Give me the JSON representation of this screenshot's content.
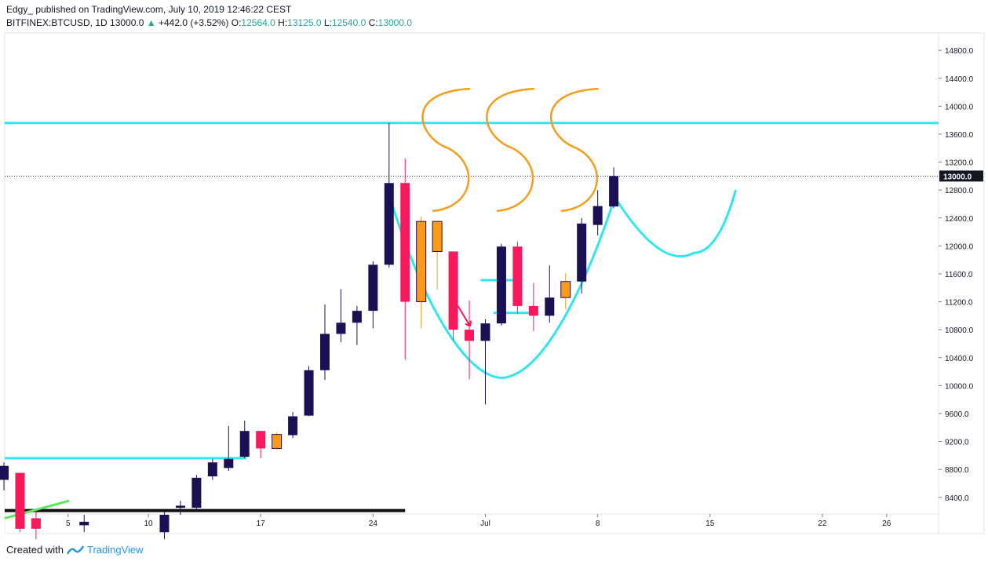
{
  "header": {
    "author": "Edgy_",
    "published": "published on TradingView.com, July 10, 2019 12:46:22 CEST",
    "symbol": "BITFINEX:BTCUSD, 1D",
    "last": "13000.0",
    "change": "+442.0 (+3.52%)",
    "o_label": "O:",
    "o_value": "12564.0",
    "h_label": "H:",
    "h_value": "13125.0",
    "l_label": "L:",
    "l_value": "12540.0",
    "c_label": "C:",
    "c_value": "13000.0"
  },
  "footer": {
    "created_with": "Created with",
    "brand": "TradingView"
  },
  "colors": {
    "up": "#1a1054",
    "down": "#f7195b",
    "neutral": "#ff9a18",
    "cyan": "#2ee6f0",
    "orange": "#f79d1c",
    "green": "#5ce65c",
    "black": "#111111",
    "priceTag": "#131722"
  },
  "chart_data": {
    "type": "candlestick",
    "symbol": "BITFINEX:BTCUSD",
    "interval": "1D",
    "ylim": [
      8150,
      15000
    ],
    "yticks": [
      8400,
      8800,
      9200,
      9600,
      10000,
      10400,
      10800,
      11200,
      11600,
      12000,
      12400,
      12800,
      13200,
      13600,
      14000,
      14400,
      14800
    ],
    "ytick_labels": [
      "8400.0",
      "8800.0",
      "9200.0",
      "9600.0",
      "10000.0",
      "10400.0",
      "10800.0",
      "11200.0",
      "11600.0",
      "12000.0",
      "12400.0",
      "12800.0",
      "13200.0",
      "13600.0",
      "14000.0",
      "14400.0",
      "14800.0"
    ],
    "xticks": [
      {
        "day": 5,
        "label": "5"
      },
      {
        "day": 10,
        "label": "10"
      },
      {
        "day": 17,
        "label": "17"
      },
      {
        "day": 24,
        "label": "24"
      },
      {
        "day": 31,
        "label": "Jul"
      },
      {
        "day": 38,
        "label": "8"
      },
      {
        "day": 45,
        "label": "15"
      },
      {
        "day": 52,
        "label": "22"
      },
      {
        "day": 56,
        "label": "26"
      }
    ],
    "last_price": 13000,
    "last_price_label": "13000.0",
    "candles": [
      {
        "d": 1,
        "o": 8650,
        "h": 8900,
        "l": 8500,
        "c": 8850,
        "color": "up"
      },
      {
        "d": 2,
        "o": 8750,
        "h": 8750,
        "l": 7900,
        "c": 7950,
        "color": "down"
      },
      {
        "d": 3,
        "o": 7950,
        "h": 8200,
        "l": 7800,
        "c": 8100,
        "color": "down"
      },
      {
        "d": 6,
        "o": 8000,
        "h": 8150,
        "l": 7900,
        "c": 8050,
        "color": "up"
      },
      {
        "d": 11,
        "o": 7900,
        "h": 8200,
        "l": 7800,
        "c": 8150,
        "color": "up"
      },
      {
        "d": 12,
        "o": 8250,
        "h": 8350,
        "l": 8150,
        "c": 8280,
        "color": "up"
      },
      {
        "d": 13,
        "o": 8250,
        "h": 8720,
        "l": 8200,
        "c": 8680,
        "color": "up"
      },
      {
        "d": 14,
        "o": 8700,
        "h": 8950,
        "l": 8650,
        "c": 8900,
        "color": "up"
      },
      {
        "d": 15,
        "o": 8820,
        "h": 9420,
        "l": 8780,
        "c": 8950,
        "color": "up"
      },
      {
        "d": 16,
        "o": 8980,
        "h": 9500,
        "l": 8960,
        "c": 9350,
        "color": "up"
      },
      {
        "d": 17,
        "o": 9350,
        "h": 9350,
        "l": 8960,
        "c": 9100,
        "color": "down"
      },
      {
        "d": 18,
        "o": 9100,
        "h": 9330,
        "l": 9080,
        "c": 9300,
        "color": "neutral"
      },
      {
        "d": 19,
        "o": 9290,
        "h": 9620,
        "l": 9250,
        "c": 9560,
        "color": "up"
      },
      {
        "d": 20,
        "o": 9570,
        "h": 10280,
        "l": 9560,
        "c": 10220,
        "color": "up"
      },
      {
        "d": 21,
        "o": 10220,
        "h": 11160,
        "l": 10080,
        "c": 10740,
        "color": "up"
      },
      {
        "d": 22,
        "o": 10740,
        "h": 11380,
        "l": 10620,
        "c": 10900,
        "color": "up"
      },
      {
        "d": 23,
        "o": 10900,
        "h": 11140,
        "l": 10580,
        "c": 11070,
        "color": "up"
      },
      {
        "d": 24,
        "o": 11070,
        "h": 11780,
        "l": 10820,
        "c": 11730,
        "color": "up"
      },
      {
        "d": 25,
        "o": 11730,
        "h": 13760,
        "l": 11690,
        "c": 12900,
        "color": "up"
      },
      {
        "d": 26,
        "o": 12900,
        "h": 13250,
        "l": 10370,
        "c": 11200,
        "color": "down"
      },
      {
        "d": 27,
        "o": 11200,
        "h": 12420,
        "l": 10820,
        "c": 12350,
        "color": "neutral"
      },
      {
        "d": 28,
        "o": 12350,
        "h": 12350,
        "l": 11370,
        "c": 11920,
        "color": "neutral"
      },
      {
        "d": 29,
        "o": 11920,
        "h": 11920,
        "l": 10650,
        "c": 10800,
        "color": "down"
      },
      {
        "d": 30,
        "o": 10800,
        "h": 11220,
        "l": 10090,
        "c": 10640,
        "color": "down"
      },
      {
        "d": 31,
        "o": 10640,
        "h": 10950,
        "l": 9730,
        "c": 10890,
        "color": "up"
      },
      {
        "d": 32,
        "o": 10890,
        "h": 12030,
        "l": 10860,
        "c": 11990,
        "color": "up"
      },
      {
        "d": 33,
        "o": 11990,
        "h": 12060,
        "l": 11030,
        "c": 11140,
        "color": "down"
      },
      {
        "d": 34,
        "o": 11140,
        "h": 11470,
        "l": 10780,
        "c": 11000,
        "color": "down"
      },
      {
        "d": 35,
        "o": 11000,
        "h": 11720,
        "l": 10900,
        "c": 11260,
        "color": "up"
      },
      {
        "d": 36,
        "o": 11260,
        "h": 11610,
        "l": 11090,
        "c": 11490,
        "color": "neutral"
      },
      {
        "d": 37,
        "o": 11490,
        "h": 12400,
        "l": 11320,
        "c": 12320,
        "color": "up"
      },
      {
        "d": 38,
        "o": 12300,
        "h": 12800,
        "l": 12150,
        "c": 12570,
        "color": "up"
      },
      {
        "d": 39,
        "o": 12564,
        "h": 13125,
        "l": 12540,
        "c": 13000,
        "color": "up"
      }
    ],
    "annotations": {
      "resistance": 13760,
      "support_upper": 8960,
      "support_lower": 8210,
      "cup_left_level": 11510,
      "cup_mid_level": 11040
    }
  }
}
